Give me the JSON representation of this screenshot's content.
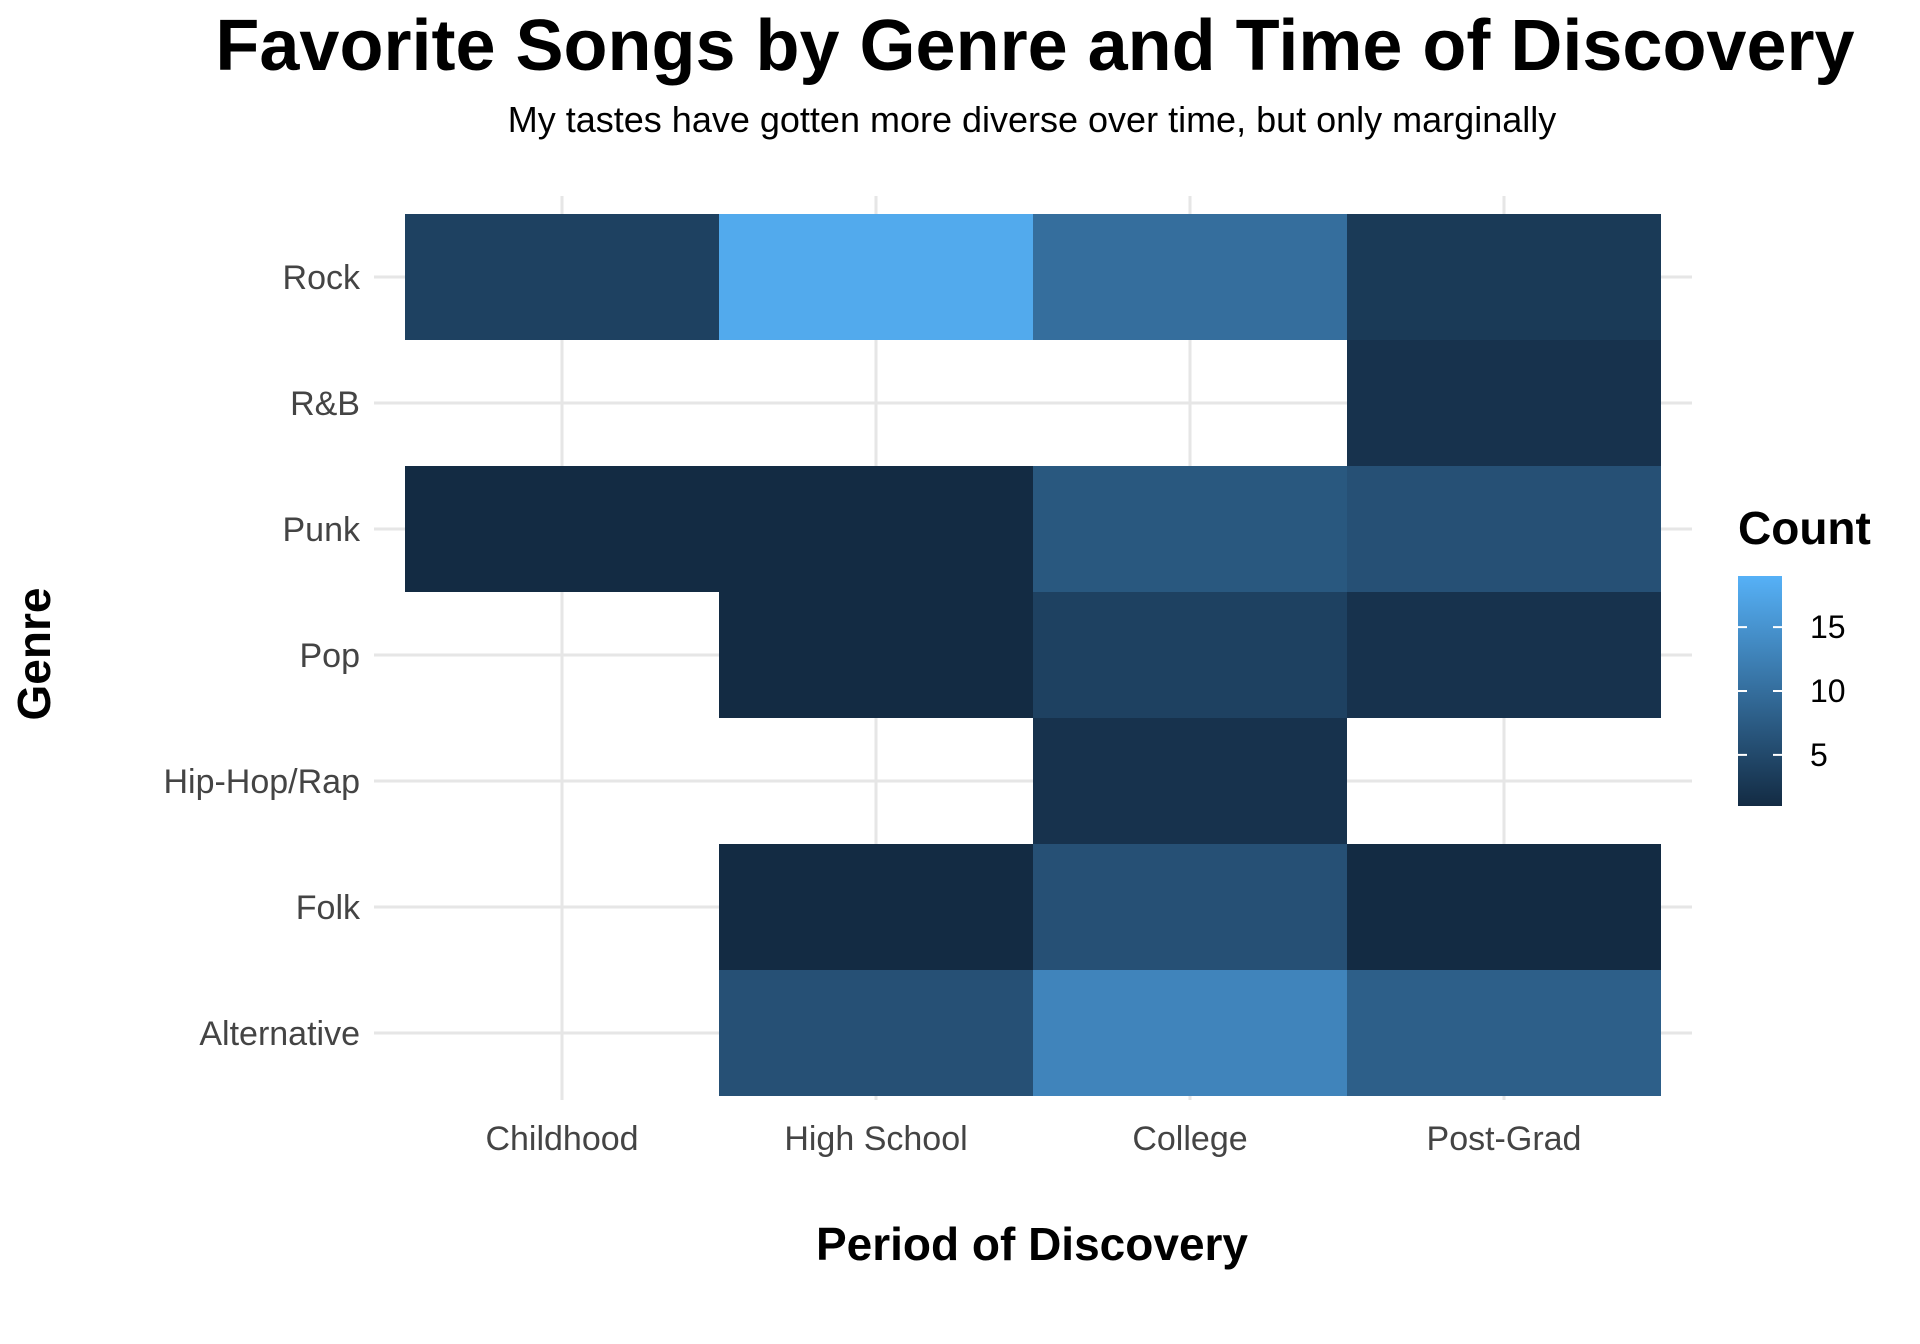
{
  "chart_data": {
    "type": "heatmap",
    "title": "Favorite Songs by Genre and Time of Discovery",
    "subtitle": "My tastes have gotten more diverse over time, but only marginally",
    "xlabel": "Period of Discovery",
    "ylabel": "Genre",
    "x_categories": [
      "Childhood",
      "High School",
      "College",
      "Post-Grad"
    ],
    "y_categories": [
      "Alternative",
      "Folk",
      "Hip-Hop/Rap",
      "Pop",
      "Punk",
      "R&B",
      "Rock"
    ],
    "cells": [
      {
        "x": "Childhood",
        "y": "Rock",
        "value": 4
      },
      {
        "x": "High School",
        "y": "Rock",
        "value": 18
      },
      {
        "x": "College",
        "y": "Rock",
        "value": 10
      },
      {
        "x": "Post-Grad",
        "y": "Rock",
        "value": 3
      },
      {
        "x": "Post-Grad",
        "y": "R&B",
        "value": 2
      },
      {
        "x": "Childhood",
        "y": "Punk",
        "value": 1
      },
      {
        "x": "High School",
        "y": "Punk",
        "value": 1
      },
      {
        "x": "College",
        "y": "Punk",
        "value": 7
      },
      {
        "x": "Post-Grad",
        "y": "Punk",
        "value": 6
      },
      {
        "x": "High School",
        "y": "Pop",
        "value": 1
      },
      {
        "x": "College",
        "y": "Pop",
        "value": 4
      },
      {
        "x": "Post-Grad",
        "y": "Pop",
        "value": 2
      },
      {
        "x": "College",
        "y": "Hip-Hop/Rap",
        "value": 2
      },
      {
        "x": "High School",
        "y": "Folk",
        "value": 1
      },
      {
        "x": "College",
        "y": "Folk",
        "value": 6
      },
      {
        "x": "Post-Grad",
        "y": "Folk",
        "value": 1
      },
      {
        "x": "High School",
        "y": "Alternative",
        "value": 6
      },
      {
        "x": "College",
        "y": "Alternative",
        "value": 13
      },
      {
        "x": "Post-Grad",
        "y": "Alternative",
        "value": 8
      }
    ],
    "legend": {
      "title": "Count",
      "position": "right",
      "ticks": [
        5,
        10,
        15
      ],
      "range": [
        1,
        19
      ],
      "color_low": "#132b43",
      "color_high": "#56b1f7"
    },
    "grid": true
  }
}
